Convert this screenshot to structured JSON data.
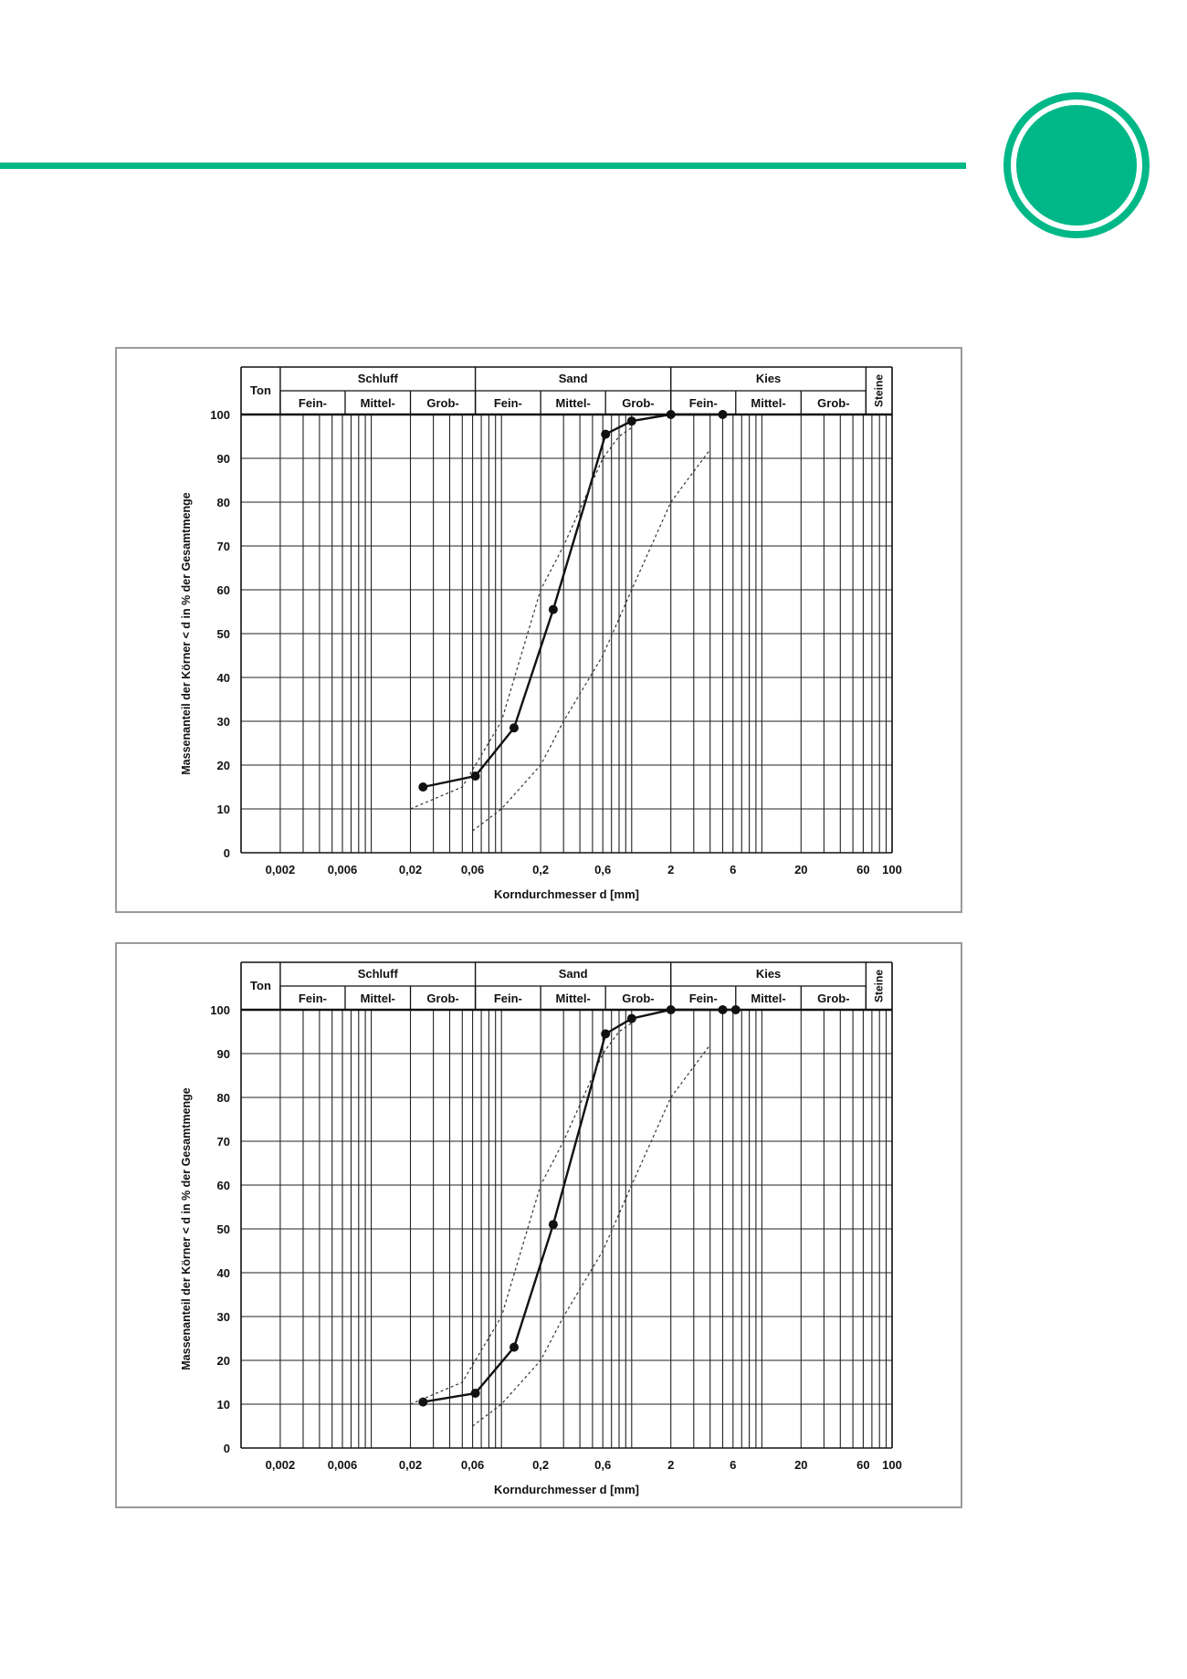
{
  "decoration": {
    "accent_color": "#00b887",
    "badge_icon": "circle-badge"
  },
  "chart_data": [
    {
      "type": "line",
      "x_scale": "log",
      "xlim": [
        0.001,
        100
      ],
      "ylim": [
        0,
        100
      ],
      "xlabel": "Korndurchmesser d [mm]",
      "ylabel": "Massenanteil der Körner < d in % der Gesamtmenge",
      "x_ticks": [
        "0,002",
        "0,006",
        "0,02",
        "0,06",
        "0,2",
        "0,6",
        "2",
        "6",
        "20",
        "60",
        "100"
      ],
      "y_ticks": [
        "0",
        "10",
        "20",
        "30",
        "40",
        "50",
        "60",
        "70",
        "80",
        "90",
        "100"
      ],
      "grid": true,
      "header": {
        "ton": "Ton",
        "steine": "Steine",
        "groups": [
          "Schluff",
          "Sand",
          "Kies"
        ],
        "subgroups": [
          "Fein-",
          "Mittel-",
          "Grob-",
          "Fein-",
          "Mittel-",
          "Grob-",
          "Fein-",
          "Mittel-",
          "Grob-"
        ]
      },
      "series": [
        {
          "style": "solid-markers",
          "x": [
            0.025,
            0.063,
            0.125,
            0.25,
            0.63,
            1.0,
            2.0,
            5.0
          ],
          "y": [
            15,
            17.5,
            28.5,
            55.5,
            95.5,
            98.5,
            100,
            100
          ]
        },
        {
          "style": "dashed",
          "x": [
            0.02,
            0.05,
            0.063,
            0.1,
            0.2,
            0.3,
            0.6,
            0.8,
            1.0
          ],
          "y": [
            10,
            15,
            20,
            30,
            60,
            70,
            90,
            95,
            97
          ]
        },
        {
          "style": "dashed",
          "x": [
            0.06,
            0.1,
            0.2,
            0.3,
            0.6,
            1.0,
            2.0,
            4.0
          ],
          "y": [
            5,
            10,
            20,
            30,
            45,
            60,
            80,
            92
          ]
        }
      ]
    },
    {
      "type": "line",
      "x_scale": "log",
      "xlim": [
        0.001,
        100
      ],
      "ylim": [
        0,
        100
      ],
      "xlabel": "Korndurchmesser d [mm]",
      "ylabel": "Massenanteil der Körner < d in % der Gesamtmenge",
      "x_ticks": [
        "0,002",
        "0,006",
        "0,02",
        "0,06",
        "0,2",
        "0,6",
        "2",
        "6",
        "20",
        "60",
        "100"
      ],
      "y_ticks": [
        "0",
        "10",
        "20",
        "30",
        "40",
        "50",
        "60",
        "70",
        "80",
        "90",
        "100"
      ],
      "grid": true,
      "header": {
        "ton": "Ton",
        "steine": "Steine",
        "groups": [
          "Schluff",
          "Sand",
          "Kies"
        ],
        "subgroups": [
          "Fein-",
          "Mittel-",
          "Grob-",
          "Fein-",
          "Mittel-",
          "Grob-",
          "Fein-",
          "Mittel-",
          "Grob-"
        ]
      },
      "series": [
        {
          "style": "solid-markers",
          "x": [
            0.025,
            0.063,
            0.125,
            0.25,
            0.63,
            1.0,
            2.0,
            5.0,
            6.3
          ],
          "y": [
            10.5,
            12.5,
            23,
            51,
            94.5,
            98,
            100,
            100,
            100
          ]
        },
        {
          "style": "dashed",
          "x": [
            0.02,
            0.05,
            0.063,
            0.1,
            0.2,
            0.3,
            0.6,
            0.8,
            1.0
          ],
          "y": [
            10,
            15,
            20,
            30,
            60,
            70,
            90,
            95,
            97
          ]
        },
        {
          "style": "dashed",
          "x": [
            0.06,
            0.1,
            0.2,
            0.3,
            0.6,
            1.0,
            2.0,
            4.0
          ],
          "y": [
            5,
            10,
            20,
            30,
            45,
            60,
            80,
            92
          ]
        }
      ]
    }
  ]
}
